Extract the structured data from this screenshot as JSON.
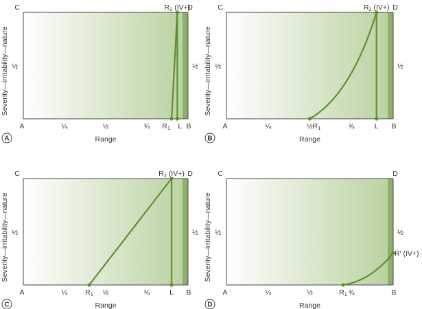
{
  "colors": {
    "fill_light": "#ffffff",
    "fill_dark": "#b9d1a0",
    "strip": "#8fb06a",
    "curve": "#5f8f2c",
    "axis": "#444444",
    "text": "#333333"
  },
  "panels": [
    {
      "badge": "A",
      "corner_top_left": "C",
      "corner_top_right": "D",
      "x_ticks": [
        {
          "label": "A",
          "at": 0.0
        },
        {
          "label": "¼",
          "at": 0.25
        },
        {
          "label": "½",
          "at": 0.5
        },
        {
          "label": "¾",
          "at": 0.75
        },
        {
          "label": "B",
          "at": 1.0
        }
      ],
      "y_half_label": "½",
      "x_axis_title": "Range",
      "y_axis_title": "Severity—irritability—nature",
      "point_labels": [
        {
          "text": "R",
          "sub": "2",
          "suffix": " (IV+)"
        },
        {
          "text": "R",
          "sub": "1",
          "suffix": ""
        },
        {
          "text": "L",
          "sub": "",
          "suffix": ""
        }
      ],
      "r1_range": 0.9,
      "l_range": 0.935,
      "r2_range": 0.935,
      "curve_type": "straight"
    },
    {
      "badge": "B",
      "corner_top_left": "C",
      "corner_top_right": "D",
      "x_ticks": [
        {
          "label": "A",
          "at": 0.0
        },
        {
          "label": "¼",
          "at": 0.25
        },
        {
          "label": "½",
          "at": 0.5
        },
        {
          "label": "¾",
          "at": 0.75
        },
        {
          "label": "B",
          "at": 1.0
        }
      ],
      "y_half_label": "½",
      "x_axis_title": "Range",
      "y_axis_title": "Severity—irritability—nature",
      "point_labels": [
        {
          "text": "R",
          "sub": "2",
          "suffix": " (IV+)"
        },
        {
          "text": "R",
          "sub": "1",
          "suffix": ""
        },
        {
          "text": "L",
          "sub": "",
          "suffix": ""
        }
      ],
      "r1_range": 0.5,
      "l_range": 0.9,
      "r2_range": 0.9,
      "curve_type": "concave-up"
    },
    {
      "badge": "C",
      "corner_top_left": "C",
      "corner_top_right": "D",
      "x_ticks": [
        {
          "label": "A",
          "at": 0.0
        },
        {
          "label": "¼",
          "at": 0.25
        },
        {
          "label": "½",
          "at": 0.5
        },
        {
          "label": "¾",
          "at": 0.75
        },
        {
          "label": "B",
          "at": 1.0
        }
      ],
      "y_half_label": "½",
      "x_axis_title": "Range",
      "y_axis_title": "Severity—irritability—nature",
      "point_labels": [
        {
          "text": "R",
          "sub": "2",
          "suffix": " (IV+)"
        },
        {
          "text": "R",
          "sub": "1",
          "suffix": ""
        },
        {
          "text": "L",
          "sub": "",
          "suffix": ""
        }
      ],
      "r1_range": 0.4,
      "l_range": 0.9,
      "r2_range": 0.9,
      "curve_type": "straight"
    },
    {
      "badge": "D",
      "corner_top_left": "C",
      "corner_top_right": "D",
      "x_ticks": [
        {
          "label": "A",
          "at": 0.0
        },
        {
          "label": "¼",
          "at": 0.25
        },
        {
          "label": "½",
          "at": 0.5
        },
        {
          "label": "¾",
          "at": 0.75
        },
        {
          "label": "B",
          "at": 1.0
        }
      ],
      "y_half_label": "½",
      "x_axis_title": "Range",
      "y_axis_title": "Severity—irritability—nature",
      "point_labels": [
        {
          "text": "R",
          "sub": "1",
          "suffix": ""
        },
        {
          "text": "R",
          "sub": "",
          "suffix": "′ (IV+)"
        }
      ],
      "r1_range": 0.7,
      "r_prime_range": 1.0,
      "r_prime_level": 0.3,
      "curve_type": "concave-up-partial"
    }
  ]
}
